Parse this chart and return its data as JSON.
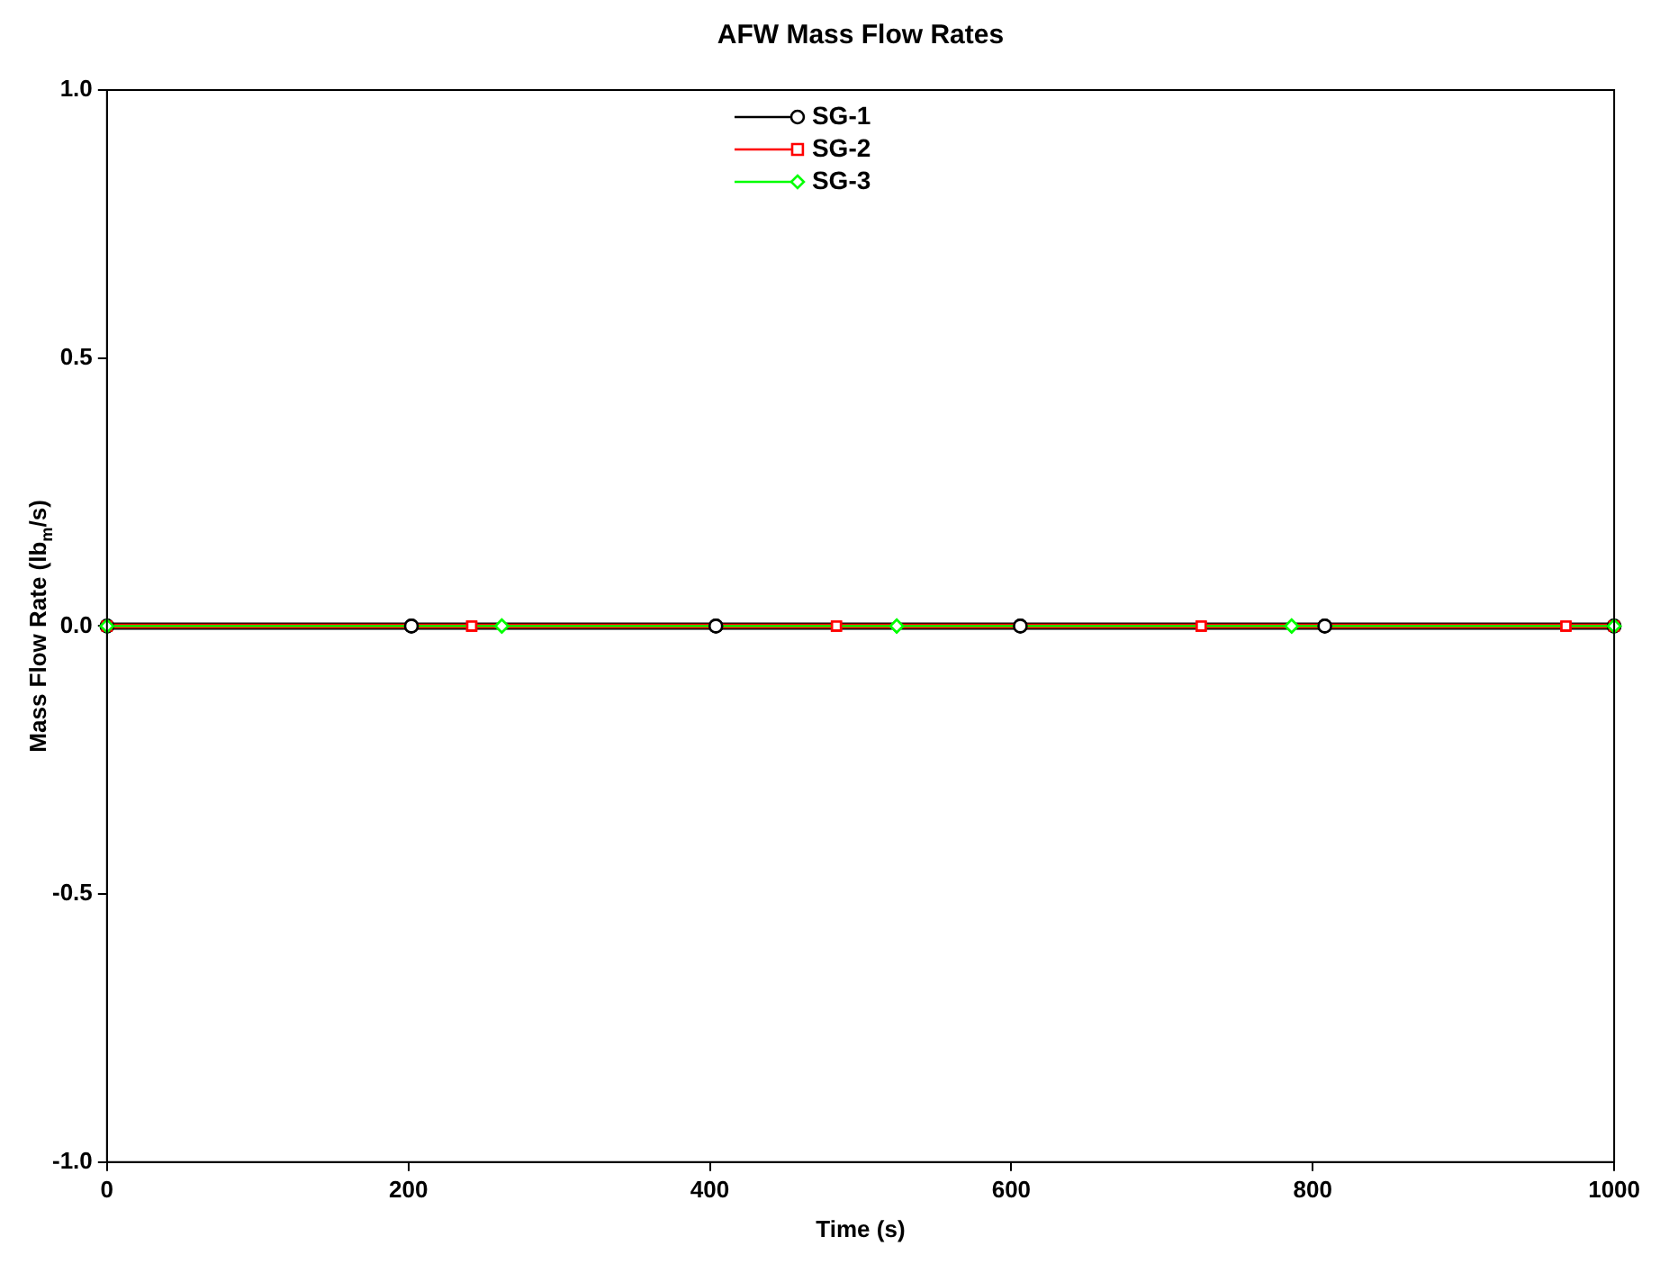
{
  "chart_data": {
    "type": "line",
    "title": "AFW Mass Flow Rates",
    "xlabel": "Time (s)",
    "ylabel": "Mass Flow Rate (lb$_{m}$/s)",
    "xlim": [
      0,
      1000
    ],
    "xticks": [
      0,
      200,
      400,
      600,
      800,
      1000
    ],
    "ylim": [
      -1,
      1
    ],
    "yticks": [
      {
        "value": -1,
        "label": "-1.0"
      },
      {
        "value": -0.5,
        "label": "-0.5"
      },
      {
        "value": 0,
        "label": "0.0"
      },
      {
        "value": 0.5,
        "label": "0.5"
      },
      {
        "value": 1,
        "label": "1.0"
      }
    ],
    "grid": false,
    "legend": "top",
    "line_style": "solid",
    "series": [
      {
        "name": "SG-1",
        "color": "#000000",
        "marker": "circle",
        "x": [
          0,
          202,
          404,
          606,
          808,
          1000
        ],
        "values": [
          0,
          0,
          0,
          0,
          0,
          0
        ]
      },
      {
        "name": "SG-2",
        "color": "#ff0000",
        "marker": "square",
        "x": [
          0,
          242,
          484,
          726,
          968,
          1000
        ],
        "values": [
          0,
          0,
          0,
          0,
          0,
          0
        ]
      },
      {
        "name": "SG-3",
        "color": "#00ff00",
        "marker": "diamond",
        "x": [
          0,
          262,
          524,
          786,
          1000
        ],
        "values": [
          0,
          0,
          0,
          0,
          0
        ]
      }
    ]
  }
}
